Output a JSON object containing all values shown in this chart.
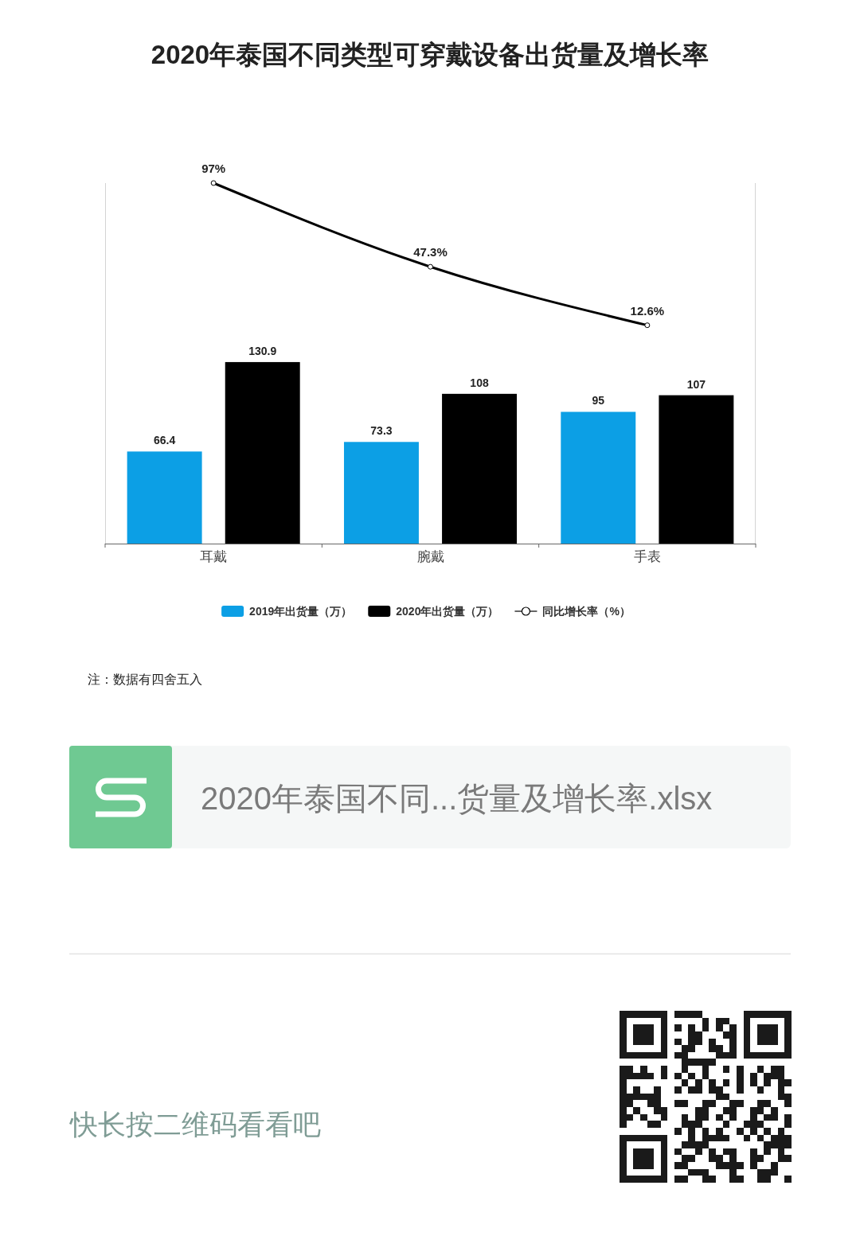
{
  "chart_data": {
    "type": "bar",
    "title": "2020年泰国不同类型可穿戴设备出货量及增长率",
    "categories": [
      "耳戴",
      "腕戴",
      "手表"
    ],
    "series": [
      {
        "name": "2019年出货量（万）",
        "color": "#0c9fe5",
        "values": [
          66.4,
          73.3,
          95
        ]
      },
      {
        "name": "2020年出货量（万）",
        "color": "#000000",
        "values": [
          130.9,
          108,
          107
        ]
      },
      {
        "name": "同比增长率（%）",
        "type": "line",
        "axis": "y2",
        "color": "#000000",
        "values": [
          97,
          47.3,
          12.6
        ],
        "value_labels": [
          "97%",
          "47.3%",
          "12.6%"
        ]
      }
    ],
    "ylim": [
      0,
      260
    ],
    "y2lim": [
      -117,
      97
    ],
    "tick_labels": "x",
    "data_labels": true,
    "legend": "bottom",
    "marker": "circle",
    "line_style": "solid",
    "annotations": [
      "注：数据有四舍五入",
      "2020年泰国不同...货量及增长率.xlsx",
      "快长按二维码看看吧"
    ]
  }
}
